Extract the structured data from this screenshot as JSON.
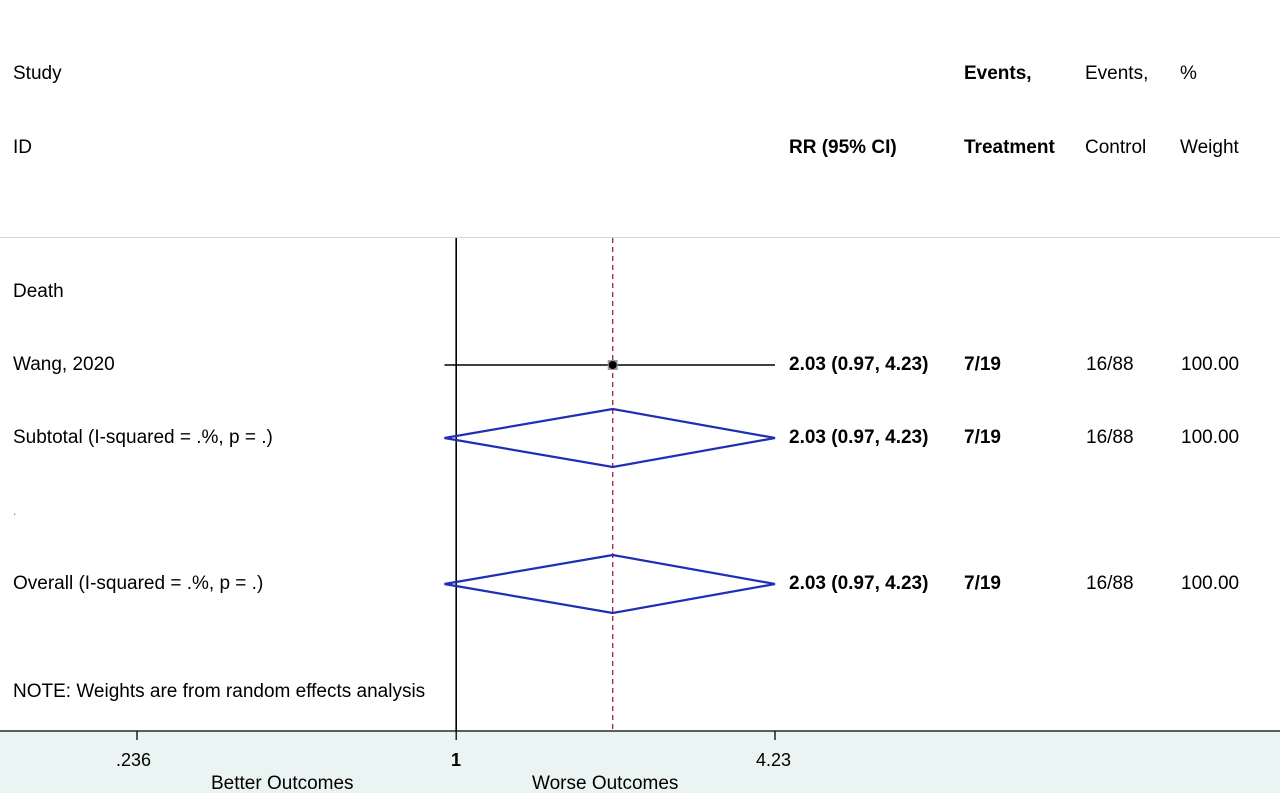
{
  "header": {
    "study_line1": "Study",
    "study_line2": "ID",
    "rr_label": "RR (95% CI)",
    "events_treatment_line1": "Events,",
    "events_treatment_line2": "Treatment",
    "events_control_line1": "Events,",
    "events_control_line2": "Control",
    "weight_line1": "%",
    "weight_line2": "Weight"
  },
  "chart_data": {
    "type": "forest",
    "effect_measure": "RR",
    "log_scale": true,
    "null_value": 1,
    "overall_value": 2.03,
    "x_ticks": [
      0.236,
      1,
      4.23
    ],
    "x_tick_labels": [
      ".236",
      "1",
      "4.23"
    ],
    "x_direction_labels": [
      "Better Outcomes",
      "Worse Outcomes"
    ],
    "rows": [
      {
        "kind": "group",
        "label": "Death"
      },
      {
        "kind": "study",
        "label": "Wang, 2020",
        "rr": 2.03,
        "lower": 0.97,
        "upper": 4.23,
        "rr_text": "2.03 (0.97, 4.23)",
        "events_treatment": "7/19",
        "events_control": "16/88",
        "weight": "100.00"
      },
      {
        "kind": "subtotal",
        "label": "Subtotal  (I-squared = .%, p = .)",
        "rr": 2.03,
        "lower": 0.97,
        "upper": 4.23,
        "rr_text": "2.03 (0.97, 4.23)",
        "events_treatment": "7/19",
        "events_control": "16/88",
        "weight": "100.00"
      },
      {
        "kind": "spacer",
        "label": "."
      },
      {
        "kind": "overall",
        "label": "Overall  (I-squared = .%, p = .)",
        "rr": 2.03,
        "lower": 0.97,
        "upper": 4.23,
        "rr_text": "2.03 (0.97, 4.23)",
        "events_treatment": "7/19",
        "events_control": "16/88",
        "weight": "100.00"
      }
    ],
    "note": "NOTE: Weights are from random effects analysis",
    "colors": {
      "diamond": "#1f2fb5",
      "reference_line": "#a0203a",
      "ci_line": "#000000"
    }
  }
}
